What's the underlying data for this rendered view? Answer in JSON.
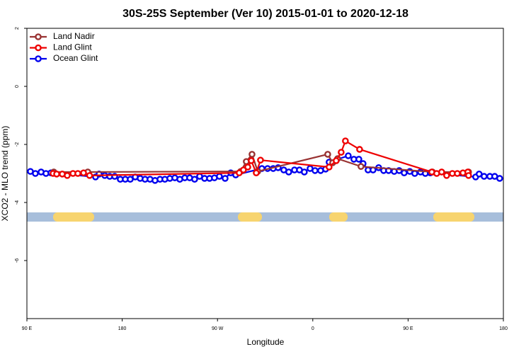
{
  "chart_data": {
    "type": "line",
    "title": "30S-25S September (Ver 10)   2015-01-01 to 2020-12-18",
    "x_label": "Longitude",
    "y_label": "XCO2 - MLO trend (ppm)",
    "xlim": [
      90,
      540
    ],
    "xticks": [
      {
        "value": 90,
        "label": "90 E"
      },
      {
        "value": 180,
        "label": "180"
      },
      {
        "value": 270,
        "label": "90 W"
      },
      {
        "value": 360,
        "label": "0"
      },
      {
        "value": 450,
        "label": "90 E"
      },
      {
        "value": 540,
        "label": "180"
      }
    ],
    "ylim": [
      -8,
      2
    ],
    "yticks": [
      -6,
      -4,
      -2,
      0,
      2
    ],
    "legend": "top-left",
    "series": [
      {
        "name": "Land Nadir",
        "color": "#993333",
        "x": [
          115.4,
          147.5,
          291.9,
          297.2,
          302.6,
          308.0,
          374.1,
          378.8,
          383.4,
          405.5,
          473.0,
          507.1
        ],
        "values": [
          -2.95,
          -2.95,
          -2.93,
          -2.59,
          -2.34,
          -2.93,
          -2.34,
          -2.63,
          -2.49,
          -2.76,
          -2.95,
          -2.95
        ]
      },
      {
        "name": "Land Glint",
        "color": "#ee0000",
        "x": [
          114.7,
          118.1,
          123.4,
          128.1,
          133.5,
          138.1,
          143.5,
          149.2,
          290.5,
          294.5,
          298.6,
          301.9,
          306.6,
          310.6,
          375.4,
          382.1,
          386.8,
          390.8,
          404.2,
          472.4,
          477.0,
          481.7,
          486.4,
          491.8,
          496.5,
          501.8,
          506.4,
          507.1
        ],
        "values": [
          -3.0,
          -3.02,
          -3.02,
          -3.07,
          -3.0,
          -3.0,
          -2.98,
          -3.07,
          -2.98,
          -2.88,
          -2.78,
          -2.56,
          -2.98,
          -2.54,
          -2.78,
          -2.56,
          -2.27,
          -1.88,
          -2.17,
          -2.95,
          -3.0,
          -2.95,
          -3.07,
          -3.0,
          -3.0,
          -2.98,
          -2.95,
          -3.07
        ]
      },
      {
        "name": "Ocean Glint",
        "color": "#0000ee",
        "x": [
          93.3,
          98.0,
          103.4,
          108.0,
          112.7,
          154.8,
          158.2,
          163.5,
          168.2,
          172.9,
          178.2,
          182.9,
          187.6,
          192.3,
          197.0,
          201.6,
          206.3,
          211.0,
          215.7,
          220.3,
          225.0,
          229.7,
          234.4,
          239.1,
          243.7,
          248.4,
          253.1,
          257.8,
          262.5,
          267.1,
          271.8,
          277.2,
          282.5,
          287.2,
          311.9,
          317.3,
          322.6,
          327.3,
          332.6,
          337.3,
          342.7,
          347.4,
          352.0,
          357.4,
          362.1,
          367.4,
          372.1,
          375.4,
          393.5,
          398.8,
          403.5,
          407.5,
          412.2,
          416.9,
          422.2,
          426.9,
          431.6,
          436.9,
          441.6,
          446.3,
          451.6,
          456.3,
          461.7,
          466.3,
          471.0,
          513.8,
          517.1,
          521.8,
          527.2,
          531.8,
          536.5
        ],
        "values": [
          -2.93,
          -3.0,
          -2.95,
          -3.0,
          -2.98,
          -3.12,
          -3.02,
          -3.07,
          -3.1,
          -3.1,
          -3.2,
          -3.2,
          -3.2,
          -3.12,
          -3.17,
          -3.2,
          -3.2,
          -3.24,
          -3.2,
          -3.2,
          -3.17,
          -3.15,
          -3.2,
          -3.15,
          -3.15,
          -3.2,
          -3.1,
          -3.17,
          -3.17,
          -3.15,
          -3.1,
          -3.17,
          -2.98,
          -3.05,
          -2.83,
          -2.83,
          -2.83,
          -2.8,
          -2.88,
          -2.95,
          -2.88,
          -2.88,
          -2.95,
          -2.83,
          -2.9,
          -2.9,
          -2.85,
          -2.61,
          -2.39,
          -2.51,
          -2.51,
          -2.66,
          -2.88,
          -2.88,
          -2.8,
          -2.9,
          -2.9,
          -2.93,
          -2.9,
          -2.98,
          -2.93,
          -3.0,
          -2.95,
          -3.0,
          -2.98,
          -3.12,
          -3.02,
          -3.1,
          -3.1,
          -3.1,
          -3.17
        ]
      }
    ]
  }
}
